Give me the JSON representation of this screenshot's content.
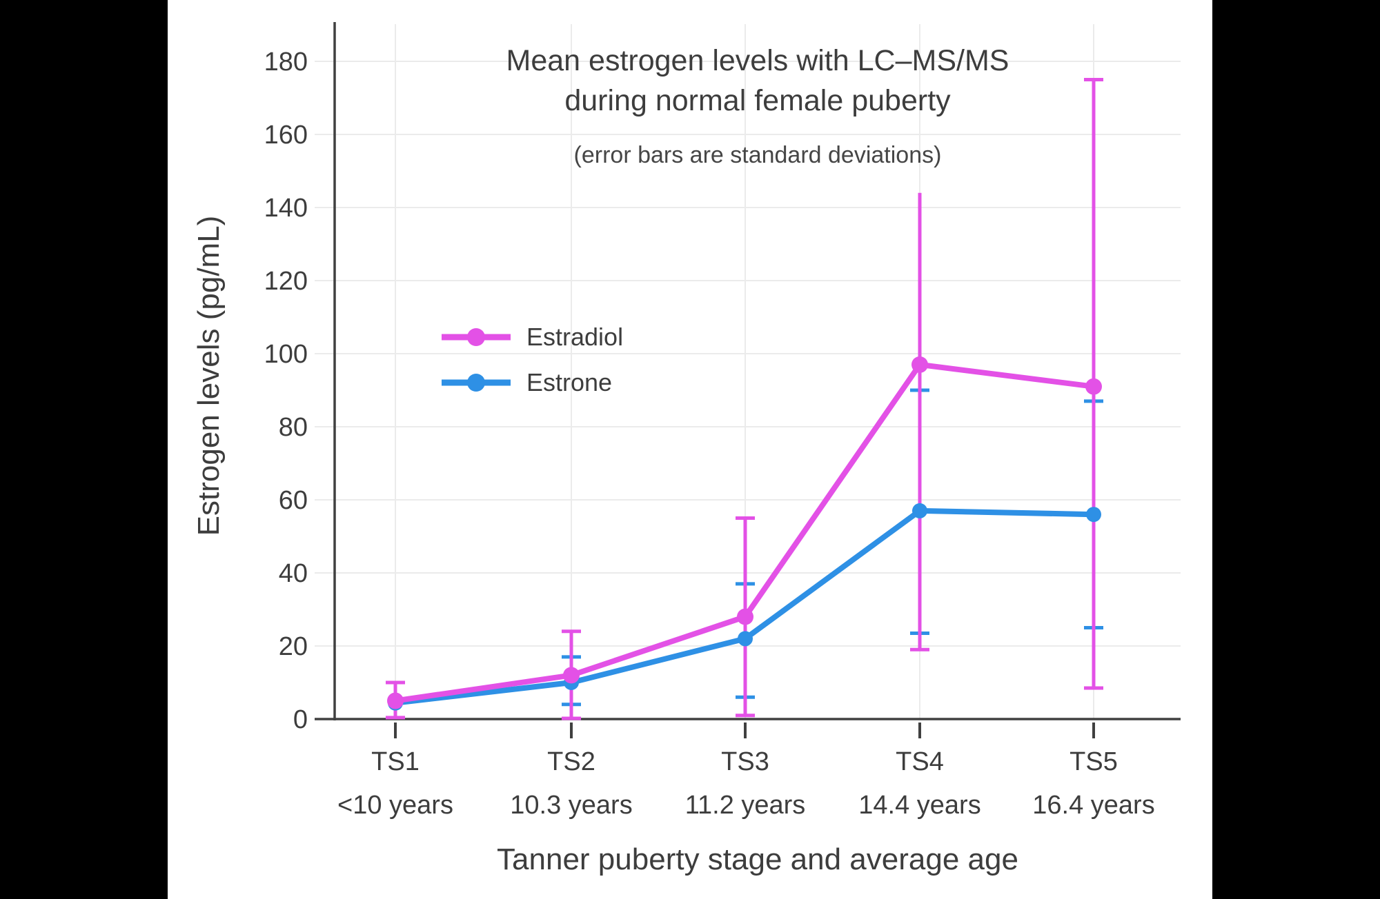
{
  "page": {
    "background": "#000000",
    "canvas_background": "#ffffff"
  },
  "chart_data": {
    "type": "line",
    "title_line1": "Mean estrogen levels with LC–MS/MS",
    "title_line2": "during normal female puberty",
    "subtitle": "(error bars are standard deviations)",
    "xlabel": "Tanner puberty stage and average age",
    "ylabel": "Estrogen levels (pg/mL)",
    "categories": [
      "TS1",
      "TS2",
      "TS3",
      "TS4",
      "TS5"
    ],
    "category_ages": [
      "<10 years",
      "10.3 years",
      "11.2 years",
      "14.4 years",
      "16.4 years"
    ],
    "y_ticks": [
      0,
      20,
      40,
      60,
      80,
      100,
      120,
      140,
      160,
      180
    ],
    "ylim": [
      0,
      190
    ],
    "grid": true,
    "legend_position": "upper-left-inside",
    "series": [
      {
        "name": "Estradiol",
        "color": "#e351e6",
        "values": [
          5,
          12,
          28,
          97,
          91
        ],
        "error_lo": [
          0.4,
          0.2,
          1,
          19,
          8.5
        ],
        "error_hi": [
          10,
          24,
          55,
          144,
          175
        ],
        "cap_lo": [
          true,
          true,
          true,
          true,
          true
        ],
        "cap_hi": [
          true,
          true,
          true,
          false,
          true
        ]
      },
      {
        "name": "Estrone",
        "color": "#2e90e5",
        "values": [
          4.4,
          10,
          22,
          57,
          56
        ],
        "error_lo": [
          null,
          4,
          6,
          23.5,
          25
        ],
        "error_hi": [
          null,
          17,
          37,
          90,
          87
        ],
        "cap_lo": [
          false,
          true,
          true,
          true,
          true
        ],
        "cap_hi": [
          false,
          true,
          true,
          true,
          true
        ]
      }
    ]
  }
}
